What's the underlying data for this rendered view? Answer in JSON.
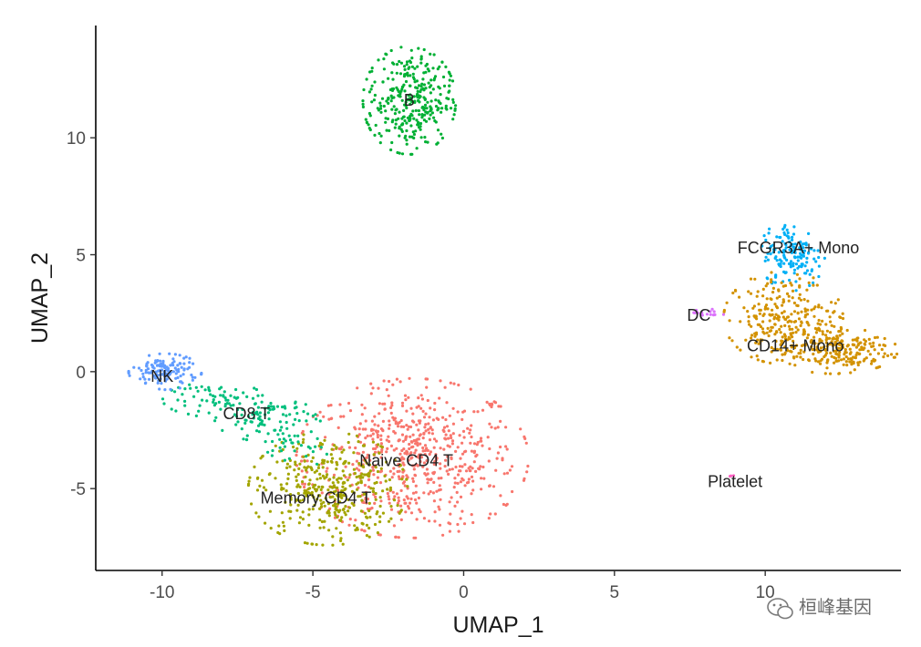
{
  "chart_data": {
    "type": "scatter",
    "title": "",
    "xlabel": "UMAP_1",
    "ylabel": "UMAP_2",
    "xlim": [
      -12.2,
      14.5
    ],
    "ylim": [
      -8.5,
      14.8
    ],
    "xticks": [
      -10,
      -5,
      0,
      5,
      10
    ],
    "yticks": [
      -5,
      0,
      5,
      10
    ],
    "grid": false,
    "legend": "none",
    "clusters": [
      {
        "name": "Naive CD4 T",
        "color": "#F8766D",
        "label_at": [
          -1.9,
          -3.8
        ],
        "blobs": [
          {
            "cx": -1.7,
            "cy": -3.7,
            "sx": 1.75,
            "sy": 1.55,
            "n": 650
          }
        ]
      },
      {
        "name": "Memory CD4 T",
        "color": "#A3A500",
        "label_at": [
          -4.9,
          -5.4
        ],
        "blobs": [
          {
            "cx": -4.5,
            "cy": -5.0,
            "sx": 1.2,
            "sy": 1.1,
            "n": 380
          }
        ]
      },
      {
        "name": "CD8 T",
        "color": "#00BF7D",
        "label_at": [
          -7.2,
          -1.8
        ],
        "blobs": [
          {
            "cx": -8.0,
            "cy": -1.2,
            "sx": 0.9,
            "sy": 0.35,
            "n": 70
          },
          {
            "cx": -6.5,
            "cy": -2.0,
            "sx": 0.8,
            "sy": 0.45,
            "n": 90
          },
          {
            "cx": -5.6,
            "cy": -3.3,
            "sx": 0.5,
            "sy": 0.4,
            "n": 30
          }
        ]
      },
      {
        "name": "NK",
        "color": "#619CFF",
        "label_at": [
          -10.0,
          -0.2
        ],
        "blobs": [
          {
            "cx": -9.9,
            "cy": 0.0,
            "sx": 0.55,
            "sy": 0.35,
            "n": 140
          }
        ]
      },
      {
        "name": "B",
        "color": "#00B034",
        "label_at": [
          -1.8,
          11.6
        ],
        "blobs": [
          {
            "cx": -1.8,
            "cy": 11.6,
            "sx": 0.7,
            "sy": 1.05,
            "n": 330
          }
        ]
      },
      {
        "name": "FCGR3A+ Mono",
        "color": "#00B0F6",
        "label_at": [
          11.1,
          5.3
        ],
        "blobs": [
          {
            "cx": 10.9,
            "cy": 5.0,
            "sx": 0.5,
            "sy": 0.7,
            "n": 150
          }
        ]
      },
      {
        "name": "CD14+ Mono",
        "color": "#D39200",
        "label_at": [
          11.0,
          1.1
        ],
        "blobs": [
          {
            "cx": 10.6,
            "cy": 2.3,
            "sx": 0.9,
            "sy": 0.9,
            "n": 260
          },
          {
            "cx": 12.3,
            "cy": 0.9,
            "sx": 0.95,
            "sy": 0.45,
            "n": 220
          }
        ]
      },
      {
        "name": "DC",
        "color": "#DB72FB",
        "label_at": [
          7.8,
          2.4
        ],
        "blobs": [
          {
            "cx": 8.1,
            "cy": 2.5,
            "sx": 0.25,
            "sy": 0.08,
            "n": 14
          }
        ]
      },
      {
        "name": "Platelet",
        "color": "#FF61C3",
        "label_at": [
          9.0,
          -4.7
        ],
        "blobs": [
          {
            "cx": 8.9,
            "cy": -4.45,
            "sx": 0.05,
            "sy": 0.05,
            "n": 3
          }
        ]
      }
    ]
  },
  "watermark": {
    "text": "桓峰基因",
    "icon": "wechat-icon"
  }
}
